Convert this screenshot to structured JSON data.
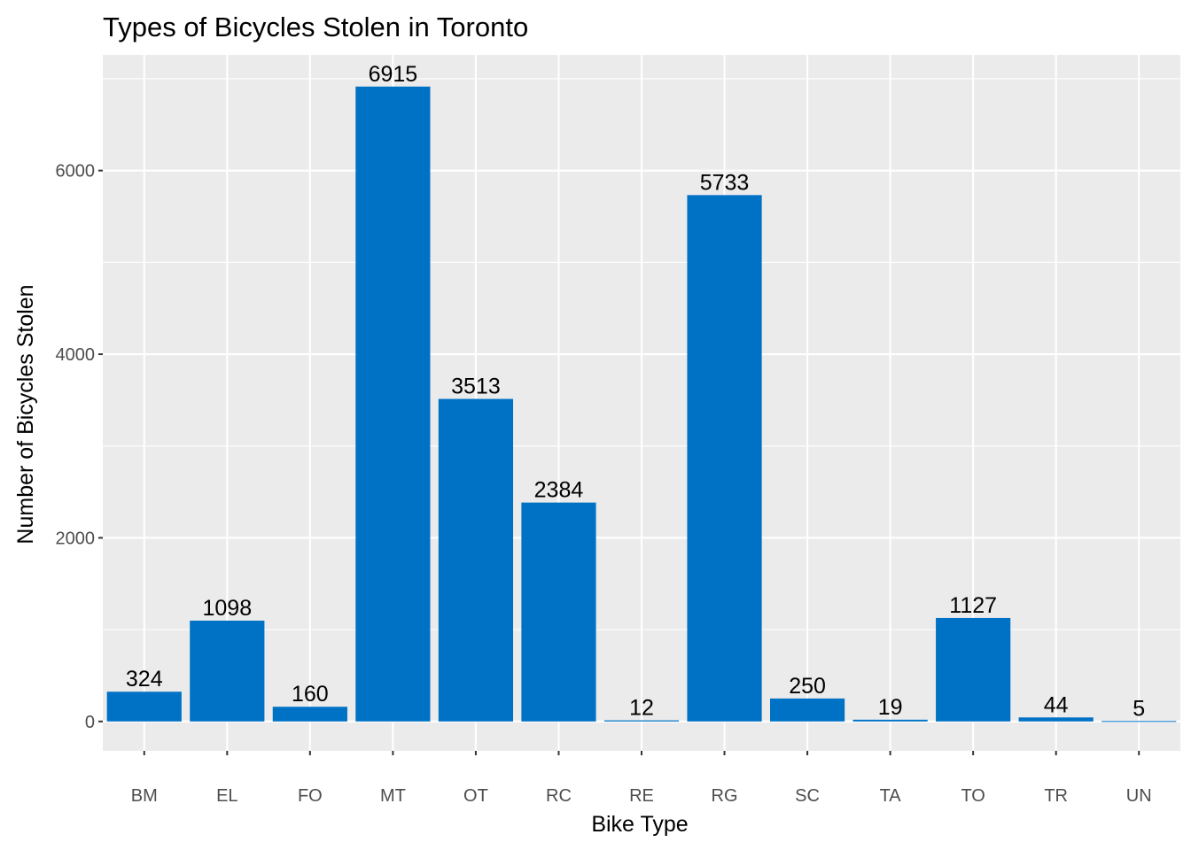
{
  "chart_data": {
    "type": "bar",
    "title": "Types of Bicycles Stolen in Toronto",
    "xlabel": "Bike Type",
    "ylabel": "Number of Bicycles Stolen",
    "categories": [
      "BM",
      "EL",
      "FO",
      "MT",
      "OT",
      "RC",
      "RE",
      "RG",
      "SC",
      "TA",
      "TO",
      "TR",
      "UN"
    ],
    "values": [
      324,
      1098,
      160,
      6915,
      3513,
      2384,
      12,
      5733,
      250,
      19,
      1127,
      44,
      5
    ],
    "data_labels": [
      "324",
      "1098",
      "160",
      "6915",
      "3513",
      "2384",
      "12",
      "5733",
      "250",
      "19",
      "1127",
      "44",
      "5"
    ],
    "ylim": [
      -320,
      7260
    ],
    "yticks": [
      0,
      2000,
      4000,
      6000
    ],
    "ytick_labels": [
      "0",
      "2000",
      "4000",
      "6000"
    ],
    "grid": true,
    "legend": "none",
    "colors": {
      "bar": "#0072c6",
      "panel_background": "#ebebeb",
      "grid_major": "#ffffff",
      "tick_text": "#4d4d4d"
    }
  }
}
